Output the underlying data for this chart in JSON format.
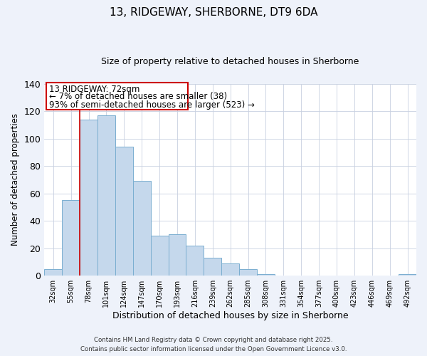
{
  "title": "13, RIDGEWAY, SHERBORNE, DT9 6DA",
  "subtitle": "Size of property relative to detached houses in Sherborne",
  "xlabel": "Distribution of detached houses by size in Sherborne",
  "ylabel": "Number of detached properties",
  "categories": [
    "32sqm",
    "55sqm",
    "78sqm",
    "101sqm",
    "124sqm",
    "147sqm",
    "170sqm",
    "193sqm",
    "216sqm",
    "239sqm",
    "262sqm",
    "285sqm",
    "308sqm",
    "331sqm",
    "354sqm",
    "377sqm",
    "400sqm",
    "423sqm",
    "446sqm",
    "469sqm",
    "492sqm"
  ],
  "values": [
    5,
    55,
    114,
    117,
    94,
    69,
    29,
    30,
    22,
    13,
    9,
    5,
    1,
    0,
    0,
    0,
    0,
    0,
    0,
    0,
    1
  ],
  "bar_color": "#c5d8ec",
  "bar_edge_color": "#7aaed0",
  "vline_color": "#cc0000",
  "annotation_text_line1": "13 RIDGEWAY: 72sqm",
  "annotation_text_line2": "← 7% of detached houses are smaller (38)",
  "annotation_text_line3": "93% of semi-detached houses are larger (523) →",
  "annotation_box_facecolor": "#ffffff",
  "annotation_box_edgecolor": "#cc0000",
  "ylim": [
    0,
    140
  ],
  "yticks": [
    0,
    20,
    40,
    60,
    80,
    100,
    120,
    140
  ],
  "footer_line1": "Contains HM Land Registry data © Crown copyright and database right 2025.",
  "footer_line2": "Contains public sector information licensed under the Open Government Licence v3.0.",
  "background_color": "#eef2fa",
  "plot_background_color": "#ffffff",
  "grid_color": "#c8d0e0",
  "title_fontsize": 11,
  "subtitle_fontsize": 9
}
